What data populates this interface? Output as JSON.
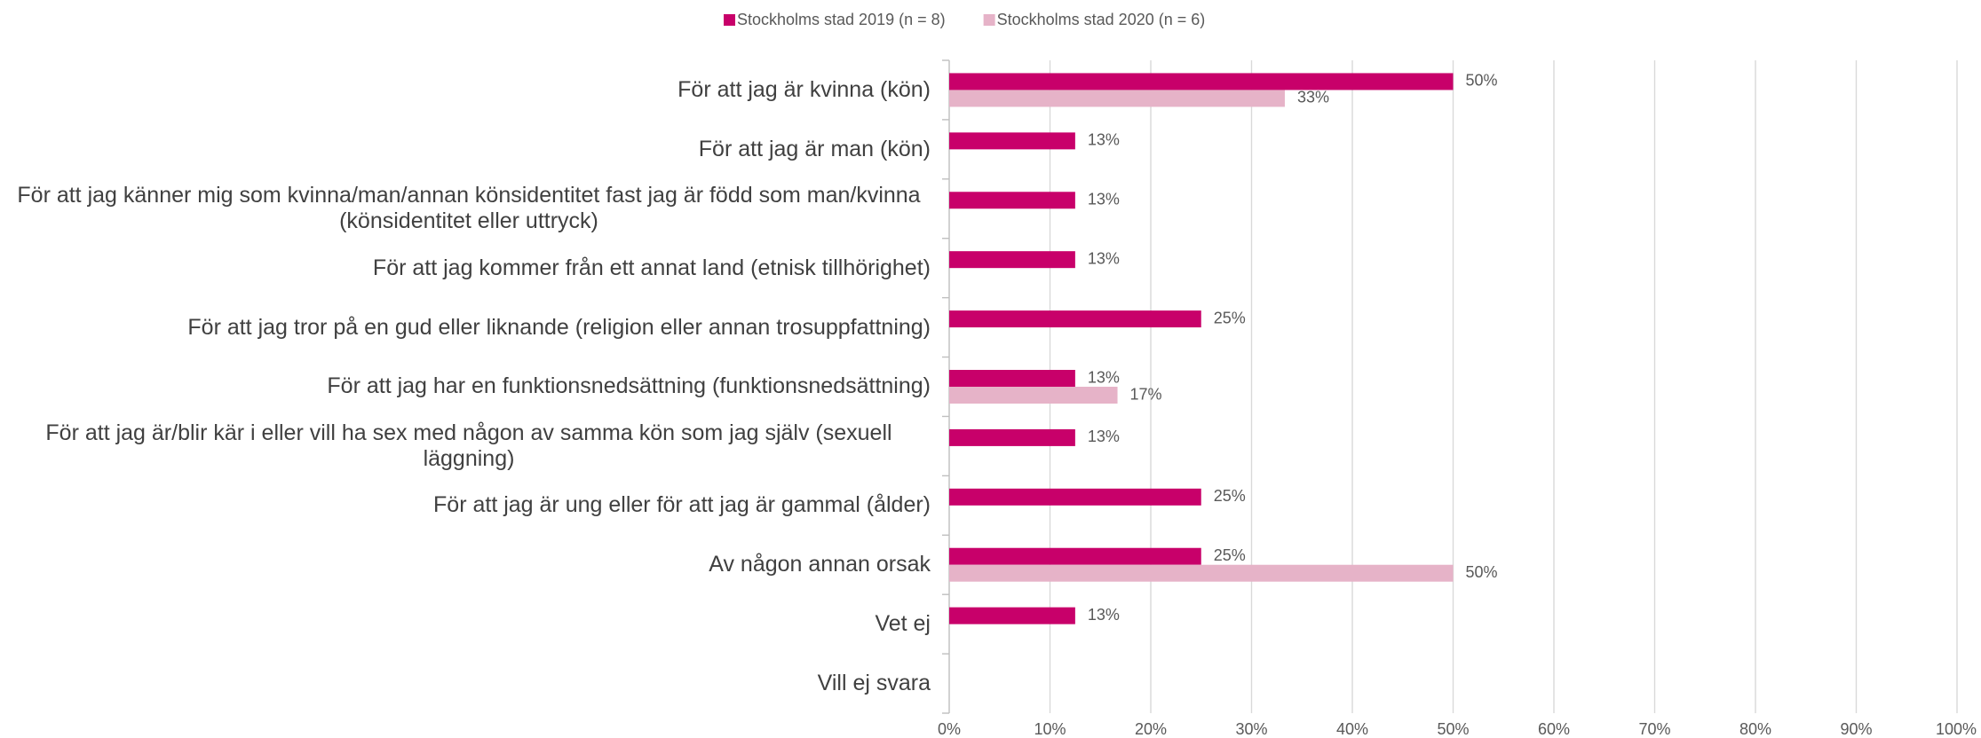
{
  "chart_data": {
    "type": "hbar",
    "categories": [
      "För att jag är kvinna (kön)",
      "För att jag är man (kön)",
      "För att jag känner mig som kvinna/man/annan könsidentitet fast jag är född som man/kvinna (könsidentitet eller uttryck)",
      "För att jag kommer från ett annat land (etnisk tillhörighet)",
      "För att jag tror på en gud eller liknande (religion eller annan trosuppfattning)",
      "För att jag har en funktionsnedsättning (funktionsnedsättning)",
      "För att jag är/blir kär i eller vill ha sex med någon av samma kön som jag själv (sexuell läggning)",
      "För att jag är ung eller för att jag är gammal (ålder)",
      "Av någon annan orsak",
      "Vet ej",
      "Vill ej svara"
    ],
    "series": [
      {
        "name": "Stockholms stad 2019 (n = 8)",
        "color": "#c8006a",
        "values": [
          50,
          12.5,
          12.5,
          12.5,
          25,
          12.5,
          12.5,
          25,
          25,
          12.5,
          null
        ],
        "value_labels": [
          "50%",
          "13%",
          "13%",
          "13%",
          "25%",
          "13%",
          "13%",
          "25%",
          "25%",
          "13%",
          null
        ]
      },
      {
        "name": "Stockholms stad 2020 (n = 6)",
        "color": "#e6b3c8",
        "values": [
          33.3,
          null,
          null,
          null,
          null,
          16.7,
          null,
          null,
          50,
          null,
          null
        ],
        "value_labels": [
          "33%",
          null,
          null,
          null,
          null,
          "17%",
          null,
          null,
          "50%",
          null,
          null
        ]
      }
    ],
    "xlim": [
      0,
      100
    ],
    "xticks": [
      {
        "value": 0,
        "label": "0%"
      },
      {
        "value": 10,
        "label": "10%"
      },
      {
        "value": 20,
        "label": "20%"
      },
      {
        "value": 30,
        "label": "30%"
      },
      {
        "value": 40,
        "label": "40%"
      },
      {
        "value": 50,
        "label": "50%"
      },
      {
        "value": 60,
        "label": "60%"
      },
      {
        "value": 70,
        "label": "70%"
      },
      {
        "value": 80,
        "label": "80%"
      },
      {
        "value": 90,
        "label": "90%"
      },
      {
        "value": 100,
        "label": "100%"
      }
    ],
    "grid": true,
    "legend": "top"
  }
}
